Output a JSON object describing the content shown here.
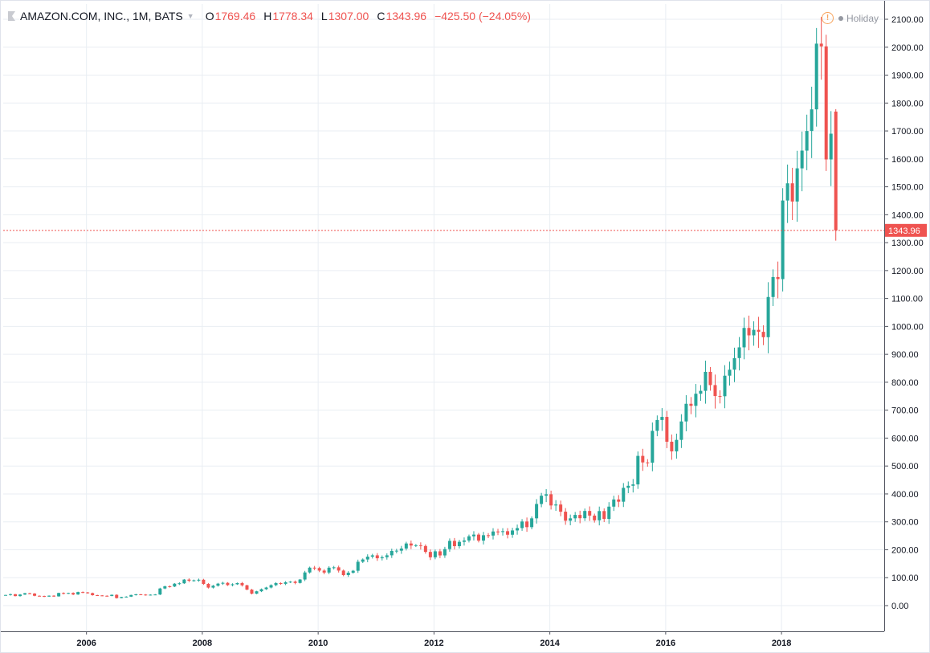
{
  "header": {
    "symbol": "AMAZON.COM, INC., 1M, BATS",
    "o_label": "O",
    "o_value": "1769.46",
    "h_label": "H",
    "h_value": "1778.34",
    "l_label": "L",
    "l_value": "1307.00",
    "c_label": "C",
    "c_value": "1343.96",
    "change": "−425.50 (−24.05%)"
  },
  "status": {
    "holiday_label": "Holiday",
    "warning_icon": "!"
  },
  "colors": {
    "up": "#26a69a",
    "down": "#ef5350",
    "grid": "#e9eef3",
    "axis": "#50535e"
  },
  "chart_data": {
    "type": "candlestick",
    "title": "AMAZON.COM, INC., 1M, BATS",
    "start": "2004-08",
    "interval": "1M",
    "ylim": [
      -100,
      2200
    ],
    "yticks": [
      0,
      100,
      200,
      300,
      400,
      500,
      600,
      700,
      800,
      900,
      1000,
      1100,
      1200,
      1300,
      1400,
      1500,
      1600,
      1700,
      1800,
      1900,
      2000,
      2100
    ],
    "ytick_labels": [
      "0.00",
      "100.00",
      "200.00",
      "300.00",
      "400.00",
      "500.00",
      "600.00",
      "700.00",
      "800.00",
      "900.00",
      "1000.00",
      "1100.00",
      "1200.00",
      "1300.00",
      "1400.00",
      "1500.00",
      "1600.00",
      "1700.00",
      "1800.00",
      "1900.00",
      "2000.00",
      "2100.00"
    ],
    "xticks": [
      "2006",
      "2008",
      "2010",
      "2012",
      "2014",
      "2016",
      "2018"
    ],
    "last_price_label": "1343.96",
    "last_price": 1343.96,
    "last_candle": {
      "open": 1769.46,
      "high": 1778.34,
      "low": 1307.0,
      "close": 1343.96
    },
    "close": [
      38.1,
      40.9,
      34.1,
      39.7,
      44.3,
      43.2,
      35.2,
      34.3,
      32.4,
      35.5,
      33.1,
      45.2,
      42.7,
      45.3,
      39.9,
      48.5,
      47.2,
      44.8,
      37.4,
      36.5,
      35.2,
      34.6,
      38.7,
      27.0,
      30.8,
      32.1,
      38.1,
      40.3,
      39.5,
      37.7,
      39.1,
      39.8,
      61.3,
      69.1,
      68.4,
      78.5,
      79.9,
      93.2,
      89.2,
      90.6,
      92.6,
      77.7,
      64.5,
      71.3,
      78.6,
      81.6,
      73.3,
      76.3,
      80.8,
      72.8,
      57.2,
      42.7,
      51.3,
      58.8,
      64.8,
      73.4,
      80.5,
      78.0,
      83.7,
      85.8,
      81.2,
      93.4,
      118.8,
      135.9,
      134.5,
      125.4,
      118.4,
      135.8,
      137.1,
      125.5,
      109.3,
      117.9,
      124.8,
      157.1,
      165.2,
      175.4,
      180.0,
      169.6,
      173.3,
      180.1,
      195.8,
      196.7,
      204.5,
      222.5,
      215.2,
      216.2,
      213.5,
      192.3,
      173.1,
      194.4,
      179.7,
      202.5,
      231.9,
      212.9,
      228.4,
      233.3,
      248.3,
      254.3,
      232.9,
      252.1,
      250.9,
      265.5,
      264.3,
      266.5,
      253.8,
      269.2,
      277.7,
      301.2,
      281.0,
      312.6,
      364.0,
      393.6,
      398.8,
      358.7,
      362.1,
      336.4,
      304.1,
      312.6,
      324.8,
      313.0,
      339.0,
      322.4,
      305.5,
      338.6,
      310.4,
      354.5,
      380.2,
      372.1,
      421.8,
      429.2,
      434.1,
      536.2,
      512.9,
      511.9,
      625.9,
      664.8,
      675.9,
      587.0,
      552.5,
      593.6,
      659.6,
      722.8,
      715.6,
      758.8,
      769.2,
      837.3,
      789.8,
      750.6,
      749.9,
      823.5,
      845.0,
      886.5,
      925.0,
      994.6,
      968.0,
      987.8,
      980.6,
      961.4,
      1105.3,
      1176.8,
      1169.5,
      1450.9,
      1512.5,
      1447.3,
      1566.1,
      1629.6,
      1699.8,
      1777.4,
      2012.7,
      2003.0,
      1598.0,
      1690.2,
      1343.96
    ]
  }
}
